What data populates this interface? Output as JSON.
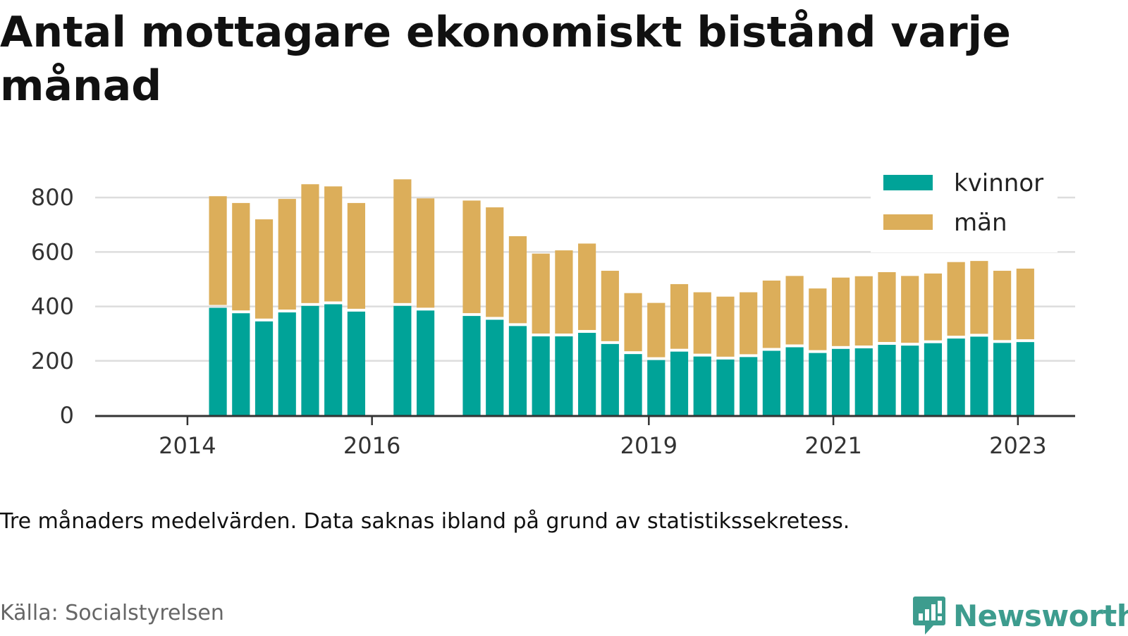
{
  "title": "Antal mottagare ekonomiskt bistånd varje månad",
  "note": "Tre månaders medelvärden. Data saknas ibland på grund av statistikssekretess.",
  "source": "Källa: Socialstyrelsen",
  "brand": "Newsworthy",
  "colors": {
    "kvinnor": "#00a398",
    "man": "#dcae5a",
    "grid": "#dddddd",
    "axis": "#333333",
    "brand": "#3d9c8e"
  },
  "chart_data": {
    "type": "bar",
    "stacked": true,
    "title": "Antal mottagare ekonomiskt bistånd varje månad",
    "xlabel": "",
    "ylabel": "",
    "ylim": [
      0,
      900
    ],
    "yticks": [
      0,
      200,
      400,
      600,
      800
    ],
    "xticks": [
      {
        "label": "2014",
        "x": 2014.0
      },
      {
        "label": "2016",
        "x": 2016.0
      },
      {
        "label": "2019",
        "x": 2019.0
      },
      {
        "label": "2021",
        "x": 2021.0
      },
      {
        "label": "2023",
        "x": 2023.0
      }
    ],
    "grid": true,
    "legend_position": "top-right",
    "x": [
      2014.33,
      2014.58,
      2014.83,
      2015.08,
      2015.33,
      2015.58,
      2015.83,
      2016.33,
      2016.58,
      2017.08,
      2017.33,
      2017.58,
      2017.83,
      2018.08,
      2018.33,
      2018.58,
      2018.83,
      2019.08,
      2019.33,
      2019.58,
      2019.83,
      2020.08,
      2020.33,
      2020.58,
      2020.83,
      2021.08,
      2021.33,
      2021.58,
      2021.83,
      2022.08,
      2022.33,
      2022.58,
      2022.83,
      2023.08
    ],
    "series": [
      {
        "name": "kvinnor",
        "values": [
          395,
          375,
          345,
          378,
          402,
          408,
          381,
          402,
          385,
          365,
          351,
          328,
          290,
          290,
          303,
          262,
          225,
          203,
          234,
          216,
          205,
          214,
          237,
          250,
          229,
          244,
          246,
          259,
          256,
          265,
          282,
          289,
          266,
          269
        ]
      },
      {
        "name": "män",
        "values": [
          410,
          405,
          375,
          417,
          447,
          433,
          399,
          465,
          412,
          424,
          413,
          330,
          304,
          316,
          328,
          269,
          224,
          210,
          248,
          236,
          231,
          238,
          258,
          262,
          237,
          262,
          265,
          267,
          256,
          256,
          281,
          278,
          265,
          270
        ]
      }
    ]
  }
}
